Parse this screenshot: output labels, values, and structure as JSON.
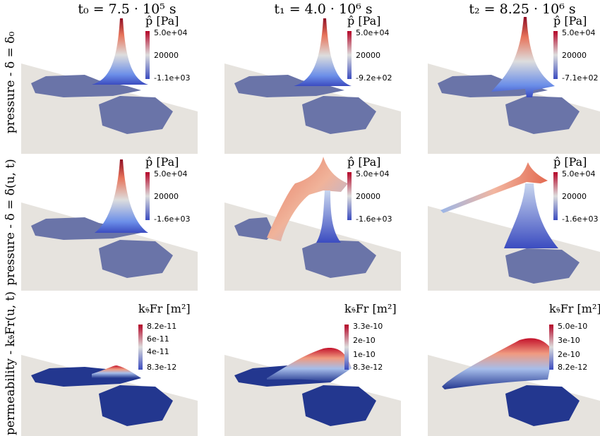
{
  "columns": [
    {
      "label": "t₀ = 7.5 · 10⁵ s"
    },
    {
      "label": "t₁ = 4.0 · 10⁶ s"
    },
    {
      "label": "t₂ = 8.25 · 10⁶ s"
    }
  ],
  "rows": [
    {
      "label": "pressure - δ = δ₀"
    },
    {
      "label": "pressure - δ = δ(u, t)"
    },
    {
      "label": "permeability - k𝔰Fr(u, t)"
    }
  ],
  "colorbars": {
    "pressure_title": "p̂ [Pa]",
    "permeability_title": "k𝔰Fr [m²]",
    "p0": [
      "5.0e+04",
      "20000",
      "-1.1e+03"
    ],
    "p1": [
      "5.0e+04",
      "20000",
      "-9.2e+02"
    ],
    "p2": [
      "5.0e+04",
      "20000",
      "-7.1e+02"
    ],
    "d0": [
      "5.0e+04",
      "20000",
      "-1.6e+03"
    ],
    "d1": [
      "5.0e+04",
      "20000",
      "-1.6e+03"
    ],
    "d2": [
      "5.0e+04",
      "20000",
      "-1.6e+03"
    ],
    "k0": [
      "8.2e-11",
      "6e-11",
      "4e-11",
      "8.3e-12"
    ],
    "k1": [
      "3.3e-10",
      "2e-10",
      "1e-10",
      "8.3e-12"
    ],
    "k2": [
      "5.0e-10",
      "3e-10",
      "2e-10",
      "8.2e-12"
    ]
  },
  "colors": {
    "plane": "#e6e3de",
    "fracture": "#6a74a8",
    "high": "#b40426",
    "mid": "#dddddd",
    "low": "#3b4cc0",
    "perm_low": "#23378f"
  }
}
